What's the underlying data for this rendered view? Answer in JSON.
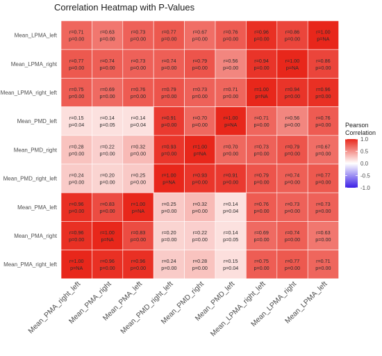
{
  "chart_data": {
    "type": "heatmap",
    "title": "Correlation Heatmap with P-Values",
    "legend": {
      "title_lines": [
        "Pearson",
        "Correlation"
      ],
      "ticks": [
        1.0,
        0.5,
        0.0,
        -0.5,
        -1.0
      ],
      "tick_labels": [
        "1.0",
        "0.5",
        "0.0",
        "-0.5",
        "-1.0"
      ],
      "range": [
        -1,
        1
      ],
      "colors": {
        "low": "#3b1fe6",
        "mid": "#ffffff",
        "high": "#e8271b"
      }
    },
    "columns": [
      "Mean_PMA_right_left",
      "Mean_PMA_right",
      "Mean_PMA_left",
      "Mean_PMD_right_left",
      "Mean_PMD_right",
      "Mean_PMD_left",
      "Mean_LPMA_right_left",
      "Mean_LPMA_right",
      "Mean_LPMA_left"
    ],
    "rows": [
      "Mean_LPMA_left",
      "Mean_LPMA_right",
      "Mean_LPMA_right_left",
      "Mean_PMD_left",
      "Mean_PMD_right",
      "Mean_PMD_right_left",
      "Mean_PMA_left",
      "Mean_PMA_right",
      "Mean_PMA_right_left"
    ],
    "r_labels": [
      [
        "r=0.71",
        "r=0.63",
        "r=0.73",
        "r=0.77",
        "r=0.67",
        "r=0.76",
        "r=0.96",
        "r=0.86",
        "r=1.00"
      ],
      [
        "r=0.77",
        "r=0.74",
        "r=0.73",
        "r=0.74",
        "r=0.79",
        "r=0.56",
        "r=0.94",
        "r=1.00",
        "r=0.86"
      ],
      [
        "r=0.75",
        "r=0.69",
        "r=0.76",
        "r=0.79",
        "r=0.73",
        "r=0.71",
        "r=1.00",
        "r=0.94",
        "r=0.96"
      ],
      [
        "r=0.15",
        "r=0.14",
        "r=0.14",
        "r=0.91",
        "r=0.70",
        "r=1.00",
        "r=0.71",
        "r=0.56",
        "r=0.76"
      ],
      [
        "r=0.28",
        "r=0.22",
        "r=0.32",
        "r=0.93",
        "r=1.00",
        "r=0.70",
        "r=0.73",
        "r=0.79",
        "r=0.67"
      ],
      [
        "r=0.24",
        "r=0.20",
        "r=0.25",
        "r=1.00",
        "r=0.93",
        "r=0.91",
        "r=0.79",
        "r=0.74",
        "r=0.77"
      ],
      [
        "r=0.96",
        "r=0.83",
        "r=1.00",
        "r=0.25",
        "r=0.32",
        "r=0.14",
        "r=0.76",
        "r=0.73",
        "r=0.73"
      ],
      [
        "r=0.96",
        "r=1.00",
        "r=0.83",
        "r=0.20",
        "r=0.22",
        "r=0.14",
        "r=0.69",
        "r=0.74",
        "r=0.63"
      ],
      [
        "r=1.00",
        "r=0.96",
        "r=0.96",
        "r=0.24",
        "r=0.28",
        "r=0.15",
        "r=0.75",
        "r=0.77",
        "r=0.71"
      ]
    ],
    "p_labels": [
      [
        "p=0.00",
        "p=0.00",
        "p=0.00",
        "p=0.00",
        "p=0.00",
        "p=0.00",
        "p=0.00",
        "p=0.00",
        "p=NA"
      ],
      [
        "p=0.00",
        "p=0.00",
        "p=0.00",
        "p=0.00",
        "p=0.00",
        "p=0.00",
        "p=0.00",
        "p=NA",
        "p=0.00"
      ],
      [
        "p=0.00",
        "p=0.00",
        "p=0.00",
        "p=0.00",
        "p=0.00",
        "p=0.00",
        "p=NA",
        "p=0.00",
        "p=0.00"
      ],
      [
        "p=0.04",
        "p=0.05",
        "p=0.04",
        "p=0.00",
        "p=0.00",
        "p=NA",
        "p=0.00",
        "p=0.00",
        "p=0.00"
      ],
      [
        "p=0.00",
        "p=0.00",
        "p=0.00",
        "p=0.00",
        "p=NA",
        "p=0.00",
        "p=0.00",
        "p=0.00",
        "p=0.00"
      ],
      [
        "p=0.00",
        "p=0.00",
        "p=0.00",
        "p=NA",
        "p=0.00",
        "p=0.00",
        "p=0.00",
        "p=0.00",
        "p=0.00"
      ],
      [
        "p=0.00",
        "p=0.00",
        "p=NA",
        "p=0.00",
        "p=0.00",
        "p=0.04",
        "p=0.00",
        "p=0.00",
        "p=0.00"
      ],
      [
        "p=0.00",
        "p=NA",
        "p=0.00",
        "p=0.00",
        "p=0.00",
        "p=0.05",
        "p=0.00",
        "p=0.00",
        "p=0.00"
      ],
      [
        "p=NA",
        "p=0.00",
        "p=0.00",
        "p=0.00",
        "p=0.00",
        "p=0.04",
        "p=0.00",
        "p=0.00",
        "p=0.00"
      ]
    ]
  }
}
